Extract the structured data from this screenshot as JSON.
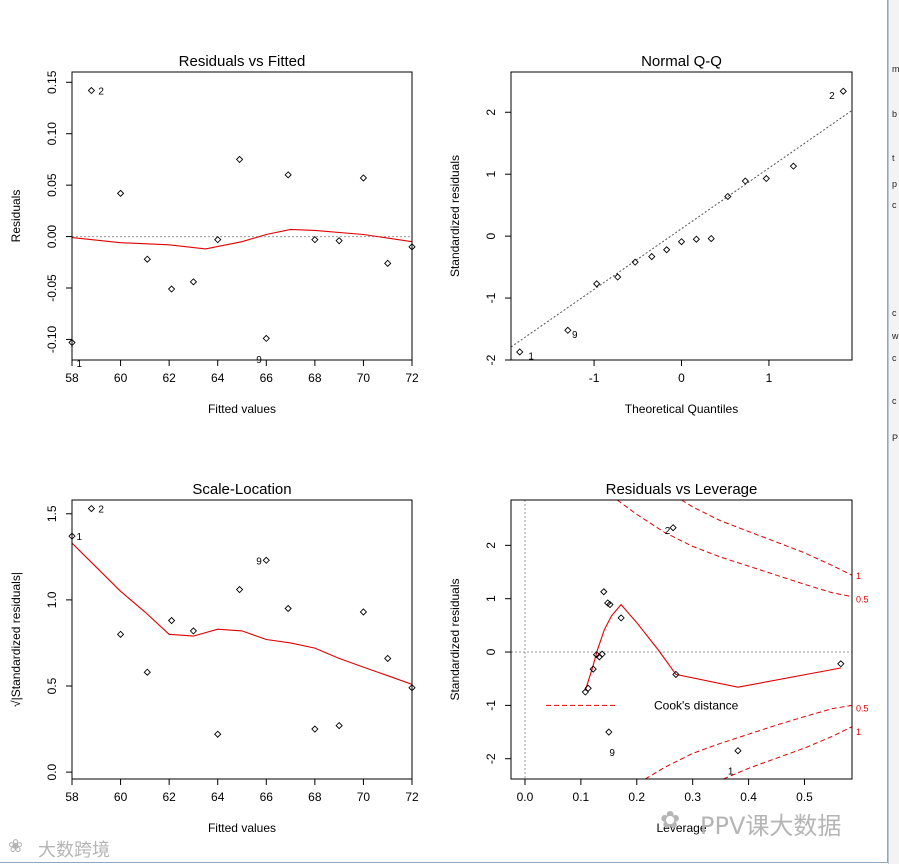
{
  "chart_data": [
    {
      "type": "scatter",
      "title": "Residuals vs Fitted",
      "xlabel": "Fitted values",
      "ylabel": "Residuals",
      "xlim": [
        58,
        72
      ],
      "ylim": [
        -0.12,
        0.16
      ],
      "xticks": [
        58,
        60,
        62,
        64,
        66,
        68,
        70,
        72
      ],
      "yticks": [
        -0.1,
        -0.05,
        0.0,
        0.05,
        0.1,
        0.15
      ],
      "ytick_labels": [
        "-0.10",
        "-0.05",
        "0.00",
        "0.05",
        "0.10",
        "0.15"
      ],
      "points": [
        {
          "x": 58.0,
          "y": -0.103
        },
        {
          "x": 58.8,
          "y": 0.142
        },
        {
          "x": 60.0,
          "y": 0.042
        },
        {
          "x": 61.1,
          "y": -0.022
        },
        {
          "x": 62.1,
          "y": -0.051
        },
        {
          "x": 63.0,
          "y": -0.044
        },
        {
          "x": 64.0,
          "y": -0.003
        },
        {
          "x": 64.9,
          "y": 0.075
        },
        {
          "x": 66.0,
          "y": -0.099
        },
        {
          "x": 66.9,
          "y": 0.06
        },
        {
          "x": 68.0,
          "y": -0.003
        },
        {
          "x": 69.0,
          "y": -0.004
        },
        {
          "x": 70.0,
          "y": 0.057
        },
        {
          "x": 71.0,
          "y": -0.026
        },
        {
          "x": 72.0,
          "y": -0.01
        }
      ],
      "point_labels": [
        {
          "x": 58.3,
          "y": -0.123,
          "text": "1"
        },
        {
          "x": 59.2,
          "y": 0.142,
          "text": "2"
        },
        {
          "x": 65.7,
          "y": -0.119,
          "text": "9"
        }
      ],
      "smooth": [
        {
          "x": 58,
          "y": -0.001
        },
        {
          "x": 60,
          "y": -0.006
        },
        {
          "x": 62,
          "y": -0.008
        },
        {
          "x": 63.5,
          "y": -0.012
        },
        {
          "x": 65,
          "y": -0.005
        },
        {
          "x": 66,
          "y": 0.002
        },
        {
          "x": 67,
          "y": 0.007
        },
        {
          "x": 68,
          "y": 0.006
        },
        {
          "x": 70,
          "y": 0.002
        },
        {
          "x": 72,
          "y": -0.005
        }
      ],
      "hline": 0
    },
    {
      "type": "scatter",
      "title": "Normal Q-Q",
      "xlabel": "Theoretical Quantiles",
      "ylabel": "Standardized residuals",
      "xlim": [
        -1.95,
        1.95
      ],
      "ylim": [
        -2.0,
        2.65
      ],
      "xticks": [
        -1,
        0,
        1
      ],
      "yticks": [
        -2,
        -1,
        0,
        1,
        2
      ],
      "ytick_labels": [
        "-2",
        "-1",
        "0",
        "1",
        "2"
      ],
      "points": [
        {
          "x": -1.85,
          "y": -1.87
        },
        {
          "x": -1.3,
          "y": -1.52
        },
        {
          "x": -0.97,
          "y": -0.77
        },
        {
          "x": -0.73,
          "y": -0.66
        },
        {
          "x": -0.53,
          "y": -0.42
        },
        {
          "x": -0.34,
          "y": -0.33
        },
        {
          "x": -0.17,
          "y": -0.22
        },
        {
          "x": 0.0,
          "y": -0.09
        },
        {
          "x": 0.17,
          "y": -0.05
        },
        {
          "x": 0.34,
          "y": -0.04
        },
        {
          "x": 0.53,
          "y": 0.64
        },
        {
          "x": 0.73,
          "y": 0.89
        },
        {
          "x": 0.97,
          "y": 0.93
        },
        {
          "x": 1.28,
          "y": 1.13
        },
        {
          "x": 1.85,
          "y": 2.34
        }
      ],
      "point_labels": [
        {
          "x": -1.72,
          "y": -1.93,
          "text": "1"
        },
        {
          "x": -1.22,
          "y": -1.58,
          "text": "9"
        },
        {
          "x": 1.72,
          "y": 2.28,
          "text": "2"
        }
      ],
      "refline": [
        {
          "x": -1.95,
          "y": -1.79
        },
        {
          "x": 1.95,
          "y": 2.03
        }
      ]
    },
    {
      "type": "scatter",
      "title": "Scale-Location",
      "xlabel": "Fitted values",
      "ylabel": "√|Standardized residuals|",
      "xlim": [
        58,
        72
      ],
      "ylim": [
        -0.04,
        1.58
      ],
      "xticks": [
        58,
        60,
        62,
        64,
        66,
        68,
        70,
        72
      ],
      "yticks": [
        0.0,
        0.5,
        1.0,
        1.5
      ],
      "ytick_labels": [
        "0.0",
        "0.5",
        "1.0",
        "1.5"
      ],
      "points": [
        {
          "x": 58.0,
          "y": 1.37
        },
        {
          "x": 58.8,
          "y": 1.53
        },
        {
          "x": 60.0,
          "y": 0.8
        },
        {
          "x": 61.1,
          "y": 0.58
        },
        {
          "x": 62.1,
          "y": 0.88
        },
        {
          "x": 63.0,
          "y": 0.82
        },
        {
          "x": 64.0,
          "y": 0.22
        },
        {
          "x": 64.9,
          "y": 1.06
        },
        {
          "x": 66.0,
          "y": 1.23
        },
        {
          "x": 66.9,
          "y": 0.95
        },
        {
          "x": 68.0,
          "y": 0.25
        },
        {
          "x": 69.0,
          "y": 0.27
        },
        {
          "x": 70.0,
          "y": 0.93
        },
        {
          "x": 71.0,
          "y": 0.66
        },
        {
          "x": 72.0,
          "y": 0.49
        }
      ],
      "point_labels": [
        {
          "x": 58.3,
          "y": 1.37,
          "text": "1"
        },
        {
          "x": 59.2,
          "y": 1.53,
          "text": "2"
        },
        {
          "x": 65.7,
          "y": 1.23,
          "text": "9"
        }
      ],
      "smooth": [
        {
          "x": 58,
          "y": 1.33
        },
        {
          "x": 59,
          "y": 1.19
        },
        {
          "x": 60,
          "y": 1.05
        },
        {
          "x": 61,
          "y": 0.93
        },
        {
          "x": 62,
          "y": 0.8
        },
        {
          "x": 63,
          "y": 0.79
        },
        {
          "x": 64,
          "y": 0.83
        },
        {
          "x": 65,
          "y": 0.82
        },
        {
          "x": 66,
          "y": 0.77
        },
        {
          "x": 67,
          "y": 0.75
        },
        {
          "x": 68,
          "y": 0.72
        },
        {
          "x": 69,
          "y": 0.66
        },
        {
          "x": 70,
          "y": 0.61
        },
        {
          "x": 71,
          "y": 0.56
        },
        {
          "x": 72,
          "y": 0.51
        }
      ]
    },
    {
      "type": "scatter",
      "title": "Residuals vs Leverage",
      "xlabel": "Leverage",
      "ylabel": "Standardized residuals",
      "xlim": [
        -0.025,
        0.585
      ],
      "ylim": [
        -2.38,
        2.85
      ],
      "xticks": [
        0.0,
        0.1,
        0.2,
        0.3,
        0.4,
        0.5
      ],
      "xtick_labels": [
        "0.0",
        "0.1",
        "0.2",
        "0.3",
        "0.4",
        "0.5"
      ],
      "yticks": [
        -2,
        -1,
        0,
        1,
        2
      ],
      "ytick_labels": [
        "-2",
        "-1",
        "0",
        "1",
        "2"
      ],
      "points": [
        {
          "x": 0.108,
          "y": -0.75
        },
        {
          "x": 0.113,
          "y": -0.68
        },
        {
          "x": 0.122,
          "y": -0.32
        },
        {
          "x": 0.128,
          "y": -0.05
        },
        {
          "x": 0.133,
          "y": -0.09
        },
        {
          "x": 0.138,
          "y": -0.04
        },
        {
          "x": 0.141,
          "y": 1.13
        },
        {
          "x": 0.148,
          "y": 0.92
        },
        {
          "x": 0.152,
          "y": 0.89
        },
        {
          "x": 0.15,
          "y": -1.5
        },
        {
          "x": 0.172,
          "y": 0.64
        },
        {
          "x": 0.265,
          "y": 2.33
        },
        {
          "x": 0.27,
          "y": -0.42
        },
        {
          "x": 0.381,
          "y": -1.85
        },
        {
          "x": 0.565,
          "y": -0.22
        }
      ],
      "point_labels": [
        {
          "x": 0.255,
          "y": 2.29,
          "text": "2"
        },
        {
          "x": 0.156,
          "y": -1.87,
          "text": "9"
        },
        {
          "x": 0.368,
          "y": -2.22,
          "text": "1"
        }
      ],
      "smooth": [
        {
          "x": 0.108,
          "y": -0.72
        },
        {
          "x": 0.12,
          "y": -0.32
        },
        {
          "x": 0.13,
          "y": 0.05
        },
        {
          "x": 0.142,
          "y": 0.42
        },
        {
          "x": 0.155,
          "y": 0.68
        },
        {
          "x": 0.172,
          "y": 0.89
        },
        {
          "x": 0.2,
          "y": 0.55
        },
        {
          "x": 0.24,
          "y": 0.02
        },
        {
          "x": 0.27,
          "y": -0.42
        },
        {
          "x": 0.381,
          "y": -0.66
        },
        {
          "x": 0.565,
          "y": -0.3
        }
      ],
      "cooks": [
        {
          "level": "0.5",
          "sign": 1,
          "points": [
            {
              "x": 0.165,
              "y": 2.85
            },
            {
              "x": 0.2,
              "y": 2.58
            },
            {
              "x": 0.25,
              "y": 2.24
            },
            {
              "x": 0.3,
              "y": 1.98
            },
            {
              "x": 0.35,
              "y": 1.78
            },
            {
              "x": 0.4,
              "y": 1.61
            },
            {
              "x": 0.45,
              "y": 1.44
            },
            {
              "x": 0.5,
              "y": 1.27
            },
            {
              "x": 0.55,
              "y": 1.11
            },
            {
              "x": 0.585,
              "y": 1.04
            }
          ]
        },
        {
          "level": "1",
          "sign": 1,
          "points": [
            {
              "x": 0.28,
              "y": 2.85
            },
            {
              "x": 0.3,
              "y": 2.72
            },
            {
              "x": 0.35,
              "y": 2.46
            },
            {
              "x": 0.4,
              "y": 2.26
            },
            {
              "x": 0.45,
              "y": 2.06
            },
            {
              "x": 0.5,
              "y": 1.86
            },
            {
              "x": 0.55,
              "y": 1.62
            },
            {
              "x": 0.585,
              "y": 1.44
            }
          ]
        },
        {
          "level": "0.5",
          "sign": -1,
          "points": [
            {
              "x": 0.215,
              "y": -2.38
            },
            {
              "x": 0.25,
              "y": -2.16
            },
            {
              "x": 0.3,
              "y": -1.9
            },
            {
              "x": 0.35,
              "y": -1.71
            },
            {
              "x": 0.4,
              "y": -1.54
            },
            {
              "x": 0.45,
              "y": -1.37
            },
            {
              "x": 0.5,
              "y": -1.21
            },
            {
              "x": 0.55,
              "y": -1.06
            },
            {
              "x": 0.585,
              "y": -1.0
            }
          ]
        },
        {
          "level": "1",
          "sign": -1,
          "points": [
            {
              "x": 0.355,
              "y": -2.38
            },
            {
              "x": 0.4,
              "y": -2.18
            },
            {
              "x": 0.45,
              "y": -1.99
            },
            {
              "x": 0.5,
              "y": -1.8
            },
            {
              "x": 0.55,
              "y": -1.58
            },
            {
              "x": 0.585,
              "y": -1.4
            }
          ]
        }
      ],
      "cook_labels": [
        {
          "text": "1",
          "y": 1.44
        },
        {
          "text": "0.5",
          "y": 1.0
        },
        {
          "text": "0.5",
          "y": -1.04
        },
        {
          "text": "1",
          "y": -1.48
        }
      ],
      "legend": {
        "text": "Cook's distance",
        "placement": "bottom-center"
      },
      "hline": 0,
      "vline": 0
    }
  ],
  "watermarks": {
    "left": "大数跨境",
    "right": "PPV课大数据"
  },
  "side_chars": [
    "m",
    "b",
    "t",
    "p",
    "c",
    "c",
    "w",
    "c",
    "c",
    "P"
  ]
}
